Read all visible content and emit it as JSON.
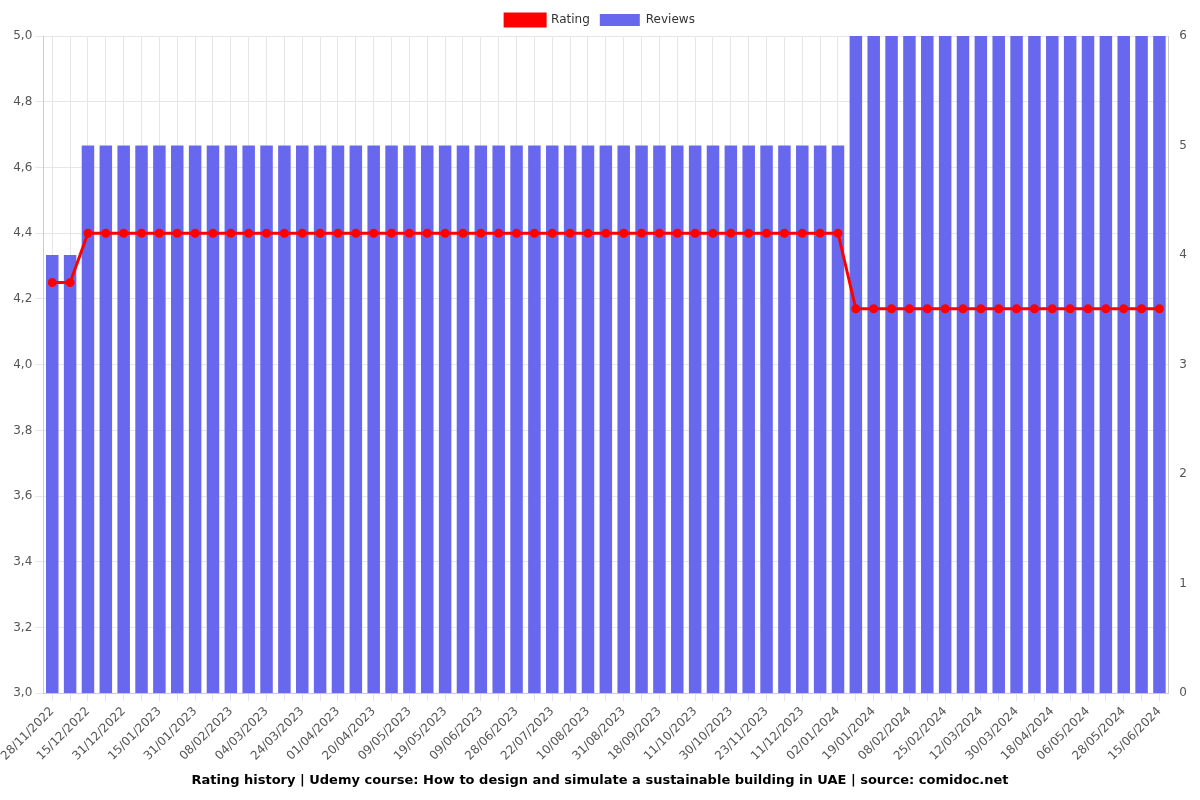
{
  "chart_data": {
    "type": "bar",
    "title": "Rating history | Udemy course: How to design and simulate a sustainable building in UAE | source: comidoc.net",
    "categories": [
      "28/11/2022",
      null,
      "15/12/2022",
      null,
      "31/12/2022",
      null,
      "15/01/2023",
      null,
      "31/01/2023",
      null,
      "08/02/2023",
      null,
      "04/03/2023",
      null,
      "24/03/2023",
      null,
      "01/04/2023",
      null,
      "20/04/2023",
      null,
      "09/05/2023",
      null,
      "19/05/2023",
      null,
      "09/06/2023",
      null,
      "28/06/2023",
      null,
      "22/07/2023",
      null,
      "10/08/2023",
      null,
      "31/08/2023",
      null,
      "18/09/2023",
      null,
      "11/10/2023",
      null,
      "30/10/2023",
      null,
      "23/11/2023",
      null,
      "11/12/2023",
      null,
      "02/01/2024",
      null,
      "19/01/2024",
      null,
      "08/02/2024",
      null,
      "25/02/2024",
      null,
      "12/03/2024",
      null,
      "30/03/2024",
      null,
      "18/04/2024",
      null,
      "06/05/2024",
      null,
      "28/05/2024",
      null,
      "15/06/2024"
    ],
    "series": [
      {
        "name": "Rating",
        "type": "line",
        "color": "#ff0000",
        "marker": "circle",
        "line_style": "solid",
        "values": [
          4.25,
          4.25,
          4.4,
          4.4,
          4.4,
          4.4,
          4.4,
          4.4,
          4.4,
          4.4,
          4.4,
          4.4,
          4.4,
          4.4,
          4.4,
          4.4,
          4.4,
          4.4,
          4.4,
          4.4,
          4.4,
          4.4,
          4.4,
          4.4,
          4.4,
          4.4,
          4.4,
          4.4,
          4.4,
          4.4,
          4.4,
          4.4,
          4.4,
          4.4,
          4.4,
          4.4,
          4.4,
          4.4,
          4.4,
          4.4,
          4.4,
          4.4,
          4.4,
          4.4,
          4.4,
          4.17,
          4.17,
          4.17,
          4.17,
          4.17,
          4.17,
          4.17,
          4.17,
          4.17,
          4.17,
          4.17,
          4.17,
          4.17,
          4.17,
          4.17,
          4.17,
          4.17,
          4.17
        ]
      },
      {
        "name": "Reviews",
        "type": "bar",
        "color": "#6868ee",
        "axis": "y2",
        "values": [
          4,
          4,
          5,
          5,
          5,
          5,
          5,
          5,
          5,
          5,
          5,
          5,
          5,
          5,
          5,
          5,
          5,
          5,
          5,
          5,
          5,
          5,
          5,
          5,
          5,
          5,
          5,
          5,
          5,
          5,
          5,
          5,
          5,
          5,
          5,
          5,
          5,
          5,
          5,
          5,
          5,
          5,
          5,
          5,
          5,
          6,
          6,
          6,
          6,
          6,
          6,
          6,
          6,
          6,
          6,
          6,
          6,
          6,
          6,
          6,
          6,
          6,
          6
        ]
      }
    ],
    "ylim": [
      3,
      5
    ],
    "yticks": [
      {
        "value": 3,
        "label": "3,0"
      },
      {
        "value": 3.2,
        "label": "3,2"
      },
      {
        "value": 3.4,
        "label": "3,4"
      },
      {
        "value": 3.6,
        "label": "3,6"
      },
      {
        "value": 3.8,
        "label": "3,8"
      },
      {
        "value": 4,
        "label": "4,0"
      },
      {
        "value": 4.2,
        "label": "4,2"
      },
      {
        "value": 4.4,
        "label": "4,4"
      },
      {
        "value": 4.6,
        "label": "4,6"
      },
      {
        "value": 4.8,
        "label": "4,8"
      },
      {
        "value": 5,
        "label": "5,0"
      }
    ],
    "y2lim": [
      0,
      6
    ],
    "y2ticks": [
      0,
      1,
      2,
      3,
      4,
      5,
      6
    ],
    "grid": true,
    "legend": "top"
  }
}
